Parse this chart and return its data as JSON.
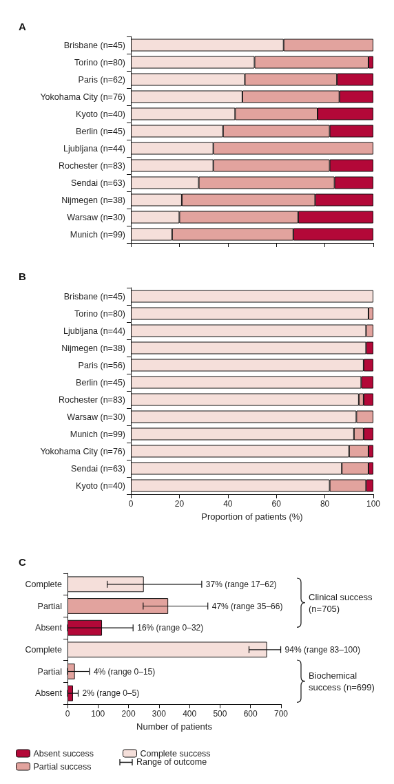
{
  "chart_data": [
    {
      "type": "bar",
      "title": "A",
      "orientation": "horizontal",
      "stacked": true,
      "tick_labels": "y",
      "xlim": [
        0,
        100
      ],
      "xticks": [
        0,
        20,
        40,
        60,
        80,
        100
      ],
      "categories": [
        "Brisbane (n=45)",
        "Torino (n=80)",
        "Paris (n=62)",
        "Yokohama City (n=76)",
        "Kyoto (n=40)",
        "Berlin (n=45)",
        "Ljubljana (n=44)",
        "Rochester (n=83)",
        "Sendai (n=63)",
        "Nijmegen (n=38)",
        "Warsaw (n=30)",
        "Munich (n=99)"
      ],
      "series": [
        {
          "color": "#f5dfda",
          "values": [
            63,
            51,
            47,
            46,
            43,
            38,
            34,
            34,
            28,
            21,
            20,
            17
          ]
        },
        {
          "color": "#e2a39e",
          "values": [
            37,
            47,
            38,
            40,
            34,
            44,
            66,
            48,
            56,
            55,
            49,
            50
          ]
        },
        {
          "color": "#b30838",
          "values": [
            0,
            2,
            15,
            14,
            23,
            18,
            0,
            18,
            16,
            24,
            31,
            33
          ]
        }
      ]
    },
    {
      "type": "bar",
      "title": "B",
      "orientation": "horizontal",
      "stacked": true,
      "xlabel": "Proportion of patients (%)",
      "xlim": [
        0,
        100
      ],
      "xticks": [
        0,
        20,
        40,
        60,
        80,
        100
      ],
      "categories": [
        "Brisbane (n=45)",
        "Torino (n=80)",
        "Ljubljana (n=44)",
        "Nijmegen (n=38)",
        "Paris (n=56)",
        "Berlin (n=45)",
        "Rochester (n=83)",
        "Warsaw (n=30)",
        "Munich (n=99)",
        "Yokohama City (n=76)",
        "Sendai (n=63)",
        "Kyoto (n=40)"
      ],
      "series": [
        {
          "color": "#f5dfda",
          "values": [
            100,
            98,
            97,
            97,
            96,
            95,
            94,
            93,
            92,
            90,
            87,
            82
          ]
        },
        {
          "color": "#e2a39e",
          "values": [
            0,
            2,
            3,
            0,
            0,
            0,
            2,
            7,
            4,
            8,
            11,
            15
          ]
        },
        {
          "color": "#b30838",
          "values": [
            0,
            0,
            0,
            3,
            4,
            5,
            4,
            0,
            4,
            2,
            2,
            3
          ]
        }
      ]
    },
    {
      "type": "bar",
      "title": "C",
      "orientation": "horizontal",
      "xlabel": "Number of patients",
      "xlim": [
        0,
        700
      ],
      "xticks": [
        0,
        100,
        200,
        300,
        400,
        500,
        600,
        700
      ],
      "legend": "bottom",
      "categories": [
        "Complete",
        "Partial",
        "Absent",
        "Complete",
        "Partial",
        "Absent"
      ],
      "series": [
        {
          "name": "Complete success",
          "color": "#f5dfda",
          "values": [
            250,
            null,
            null,
            654,
            null,
            null
          ],
          "errors": [
            [
              130,
              440
            ],
            null,
            null,
            [
              595,
              699
            ],
            null,
            null
          ]
        },
        {
          "name": "Partial success",
          "color": "#e2a39e",
          "values": [
            null,
            330,
            null,
            null,
            24,
            null
          ],
          "errors": [
            null,
            [
              248,
              460
            ],
            null,
            null,
            [
              0,
              72
            ],
            null
          ]
        },
        {
          "name": "Absent success",
          "color": "#b30838",
          "values": [
            null,
            null,
            113,
            null,
            null,
            18
          ],
          "errors": [
            null,
            null,
            [
              0,
              215
            ],
            null,
            null,
            [
              0,
              35
            ]
          ]
        }
      ],
      "annotations": [
        "37% (range 17–62)",
        "47% (range 35–66)",
        "16% (range 0–32)",
        "94% (range 83–100)",
        "4% (range 0–15)",
        "2% (range 0–5)",
        "Clinical success (n=705)",
        "Biochemical success (n=699)",
        "Range of outcome"
      ]
    }
  ]
}
